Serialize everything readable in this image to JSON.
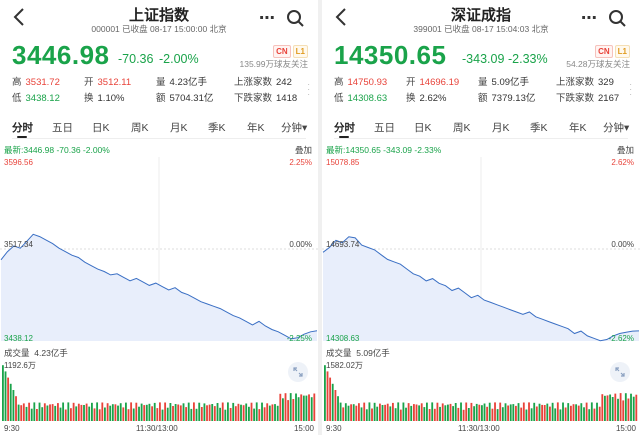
{
  "colors": {
    "up": "#e8433a",
    "down": "#1aa34a",
    "line": "#3a6fc4",
    "fill": "#e8eefb"
  },
  "panels": [
    {
      "title": "上证指数",
      "code": "000001",
      "status": "已收盘 08-17 15:00:00 北京",
      "price": "3446.98",
      "change": "-70.36",
      "change_pct": "-2.00%",
      "badge_cn": "CN",
      "badge_l1": "L1",
      "follow": "135.99万球友关注",
      "stats": {
        "high_label": "高",
        "high": "3531.72",
        "open_label": "开",
        "open": "3512.11",
        "vol_label": "量",
        "vol": "4.23亿手",
        "up_label": "上涨家数",
        "up": "242",
        "low_label": "低",
        "low": "3438.12",
        "turn_label": "换",
        "turn": "1.10%",
        "amt_label": "额",
        "amt": "5704.31亿",
        "down_label": "下跌家数",
        "down": "1418"
      },
      "tabs": [
        "分时",
        "五日",
        "日K",
        "周K",
        "月K",
        "季K",
        "年K",
        "分钟▾"
      ],
      "latest": "最新:3446.98 -70.36 -2.00%",
      "overlay": "叠加",
      "chart_data": {
        "type": "line",
        "y_top": "3596.56",
        "y_mid": "3517.34",
        "y_bottom": "3438.12",
        "pct_top": "2.25%",
        "pct_mid": "0.00%",
        "pct_bottom": "-2.25%",
        "ylim": [
          3438.12,
          3596.56
        ],
        "prev_close": 3517.34,
        "values": [
          3508,
          3515,
          3520,
          3518,
          3524,
          3530,
          3528,
          3525,
          3522,
          3518,
          3515,
          3512,
          3510,
          3506,
          3503,
          3500,
          3498,
          3495,
          3496,
          3493,
          3490,
          3492,
          3489,
          3486,
          3488,
          3485,
          3482,
          3484,
          3480,
          3478,
          3475,
          3472,
          3470,
          3468,
          3466,
          3463,
          3460,
          3458,
          3455,
          3452,
          3455,
          3451,
          3448,
          3446,
          3443,
          3440,
          3441,
          3444,
          3446,
          3447
        ],
        "vol_label": "成交量",
        "vol_value": "4.23亿手",
        "vol_max": "1192.6万",
        "time_start": "9:30",
        "time_mid": "11:30/13:00",
        "time_end": "15:00"
      }
    },
    {
      "title": "深证成指",
      "code": "399001",
      "status": "已收盘 08-17 15:04:03 北京",
      "price": "14350.65",
      "change": "-343.09",
      "change_pct": "-2.33%",
      "badge_cn": "CN",
      "badge_l1": "L1",
      "follow": "54.28万球友关注",
      "stats": {
        "high_label": "高",
        "high": "14750.93",
        "open_label": "开",
        "open": "14696.19",
        "vol_label": "量",
        "vol": "5.09亿手",
        "up_label": "上涨家数",
        "up": "329",
        "low_label": "低",
        "low": "14308.63",
        "turn_label": "换",
        "turn": "2.62%",
        "amt_label": "额",
        "amt": "7379.13亿",
        "down_label": "下跌家数",
        "down": "2167"
      },
      "tabs": [
        "分时",
        "五日",
        "日K",
        "周K",
        "月K",
        "季K",
        "年K",
        "分钟▾"
      ],
      "latest": "最新:14350.65 -343.09 -2.33%",
      "overlay": "叠加",
      "chart_data": {
        "type": "line",
        "y_top": "15078.85",
        "y_mid": "14693.74",
        "y_bottom": "14308.63",
        "pct_top": "2.62%",
        "pct_mid": "0.00%",
        "pct_bottom": "-2.62%",
        "ylim": [
          14308.63,
          15078.85
        ],
        "prev_close": 14693.74,
        "values": [
          14680,
          14700,
          14730,
          14720,
          14745,
          14740,
          14710,
          14700,
          14690,
          14670,
          14650,
          14640,
          14630,
          14610,
          14590,
          14580,
          14560,
          14570,
          14550,
          14540,
          14520,
          14530,
          14510,
          14490,
          14500,
          14480,
          14470,
          14460,
          14450,
          14440,
          14430,
          14420,
          14430,
          14410,
          14400,
          14390,
          14380,
          14370,
          14360,
          14340,
          14350,
          14330,
          14320,
          14310,
          14315,
          14330,
          14340,
          14345,
          14350,
          14351
        ],
        "vol_label": "成交量",
        "vol_value": "5.09亿手",
        "vol_max": "1582.02万",
        "time_start": "9:30",
        "time_mid": "11:30/13:00",
        "time_end": "15:00"
      }
    }
  ]
}
